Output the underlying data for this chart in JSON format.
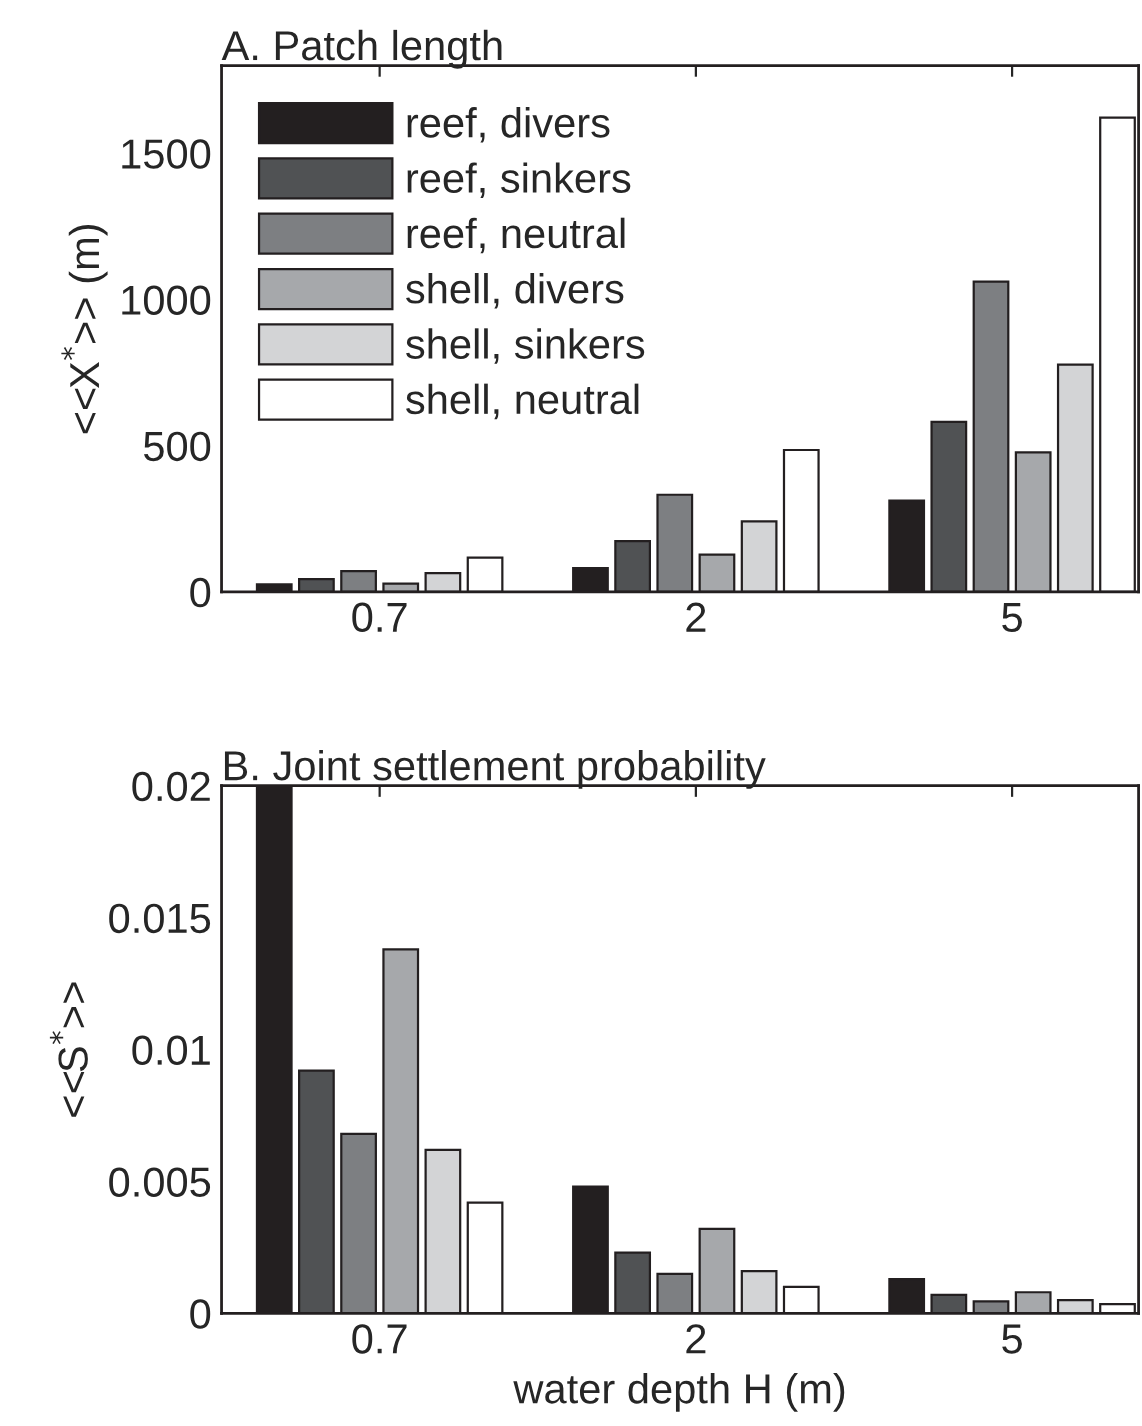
{
  "chart_data": [
    {
      "type": "bar",
      "title": "A. Patch length",
      "ylabel": "<<X$^{*}$>> (m)",
      "categories": [
        "0.7",
        "2",
        "5"
      ],
      "ylim": [
        0,
        1800
      ],
      "yticks": [
        0,
        500,
        1000,
        1500
      ],
      "legend": "top left",
      "series": [
        {
          "name": "reef, divers",
          "color": "#231f20",
          "values": [
            25,
            81,
            312
          ]
        },
        {
          "name": "reef, sinkers",
          "color": "#505254",
          "values": [
            43,
            173,
            581
          ]
        },
        {
          "name": "reef, neutral",
          "color": "#7d7f82",
          "values": [
            71,
            332,
            1061
          ]
        },
        {
          "name": "shell, divers",
          "color": "#a6a8ab",
          "values": [
            28,
            127,
            477
          ]
        },
        {
          "name": "shell, sinkers",
          "color": "#d3d4d6",
          "values": [
            64,
            241,
            777
          ]
        },
        {
          "name": "shell, neutral",
          "color": "#ffffff",
          "values": [
            117,
            485,
            1622
          ]
        }
      ]
    },
    {
      "type": "bar",
      "title": "B. Joint settlement probability",
      "ylabel": "<<S$^{*}$>>",
      "xlabel": "water depth H (m)",
      "categories": [
        "0.7",
        "2",
        "5"
      ],
      "ylim": [
        0,
        0.02
      ],
      "yticks": [
        0,
        0.005,
        0.01,
        0.015,
        0.02
      ],
      "series": [
        {
          "color": "#231f20",
          "values": [
            0.02,
            0.0048,
            0.0013
          ]
        },
        {
          "color": "#505254",
          "values": [
            0.0092,
            0.0023,
            0.0007
          ]
        },
        {
          "color": "#7d7f82",
          "values": [
            0.0068,
            0.0015,
            0.00045
          ]
        },
        {
          "color": "#a6a8ab",
          "values": [
            0.0138,
            0.0032,
            0.0008
          ]
        },
        {
          "color": "#d3d4d6",
          "values": [
            0.0062,
            0.0016,
            0.0005
          ]
        },
        {
          "color": "#ffffff",
          "values": [
            0.0042,
            0.001,
            0.00035
          ]
        }
      ]
    }
  ]
}
